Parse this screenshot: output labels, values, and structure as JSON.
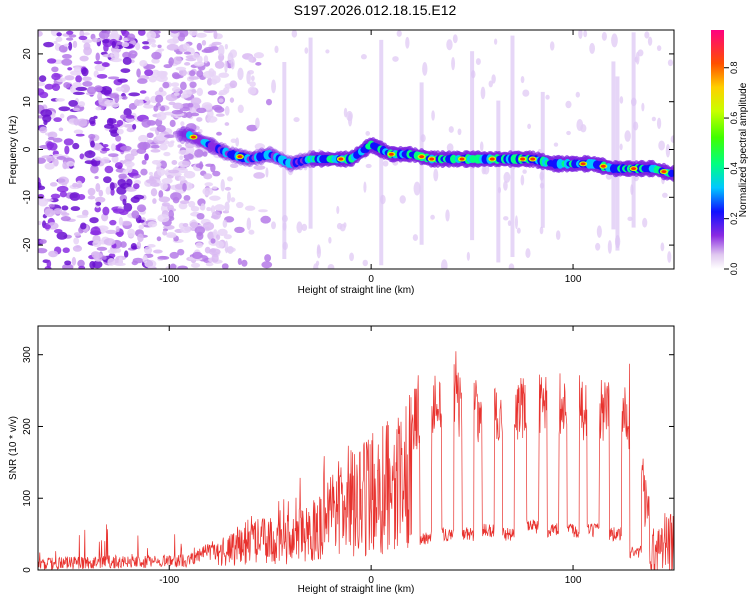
{
  "figure": {
    "title": "S197.2026.012.18.15.E12"
  },
  "chart_data": [
    {
      "type": "heatmap",
      "title": "S197.2026.012.18.15.E12",
      "xlabel": "Height of straight line (km)",
      "ylabel": "Frequency (Hz)",
      "xlim": [
        -165,
        150
      ],
      "ylim": [
        -25,
        25
      ],
      "xticks": [
        -100,
        0,
        100
      ],
      "yticks": [
        -20,
        -10,
        0,
        10,
        20
      ],
      "colorbar": {
        "label": "Normalized spectral amplitude",
        "range": [
          0,
          0.95
        ],
        "ticks": [
          0.0,
          0.2,
          0.4,
          0.6,
          0.8
        ]
      },
      "signal_track": {
        "description_points_x": [
          -90,
          -80,
          -70,
          -60,
          -50,
          -40,
          -30,
          -20,
          -10,
          0,
          10,
          20,
          30,
          40,
          50,
          60,
          70,
          80,
          90,
          100,
          110,
          120,
          130,
          140,
          148
        ],
        "description_points_y": [
          3,
          1,
          -1,
          -2,
          -1,
          -3,
          -2,
          -2,
          -2,
          1,
          -1,
          -1,
          -2,
          -2,
          -2,
          -2,
          -2,
          -2,
          -3,
          -3,
          -3,
          -4,
          -4,
          -4,
          -5
        ]
      }
    },
    {
      "type": "line",
      "xlabel": "Height of straight line (km)",
      "ylabel": "SNR (10 * v/v)",
      "xlim": [
        -165,
        150
      ],
      "ylim": [
        0,
        340
      ],
      "xticks": [
        -100,
        0,
        100
      ],
      "yticks": [
        0,
        100,
        200,
        300
      ],
      "series": [
        {
          "name": "SNR",
          "color": "#e8322e",
          "envelope_x": [
            -165,
            -90,
            -80,
            -60,
            -40,
            -30,
            -20,
            -10,
            0,
            10,
            20,
            25,
            30,
            40,
            50,
            60,
            70,
            80,
            90,
            100,
            110,
            120,
            130,
            135,
            140,
            145,
            150
          ],
          "envelope_y": [
            18,
            22,
            40,
            70,
            80,
            90,
            140,
            170,
            190,
            220,
            250,
            260,
            270,
            275,
            270,
            260,
            270,
            275,
            280,
            270,
            265,
            270,
            255,
            150,
            60,
            80,
            90
          ],
          "dips_x": [
            27,
            38,
            48,
            58,
            68,
            80,
            90,
            100,
            110,
            121,
            131
          ],
          "dips_y": [
            45,
            50,
            50,
            55,
            50,
            60,
            55,
            55,
            55,
            50,
            25
          ]
        }
      ]
    }
  ]
}
